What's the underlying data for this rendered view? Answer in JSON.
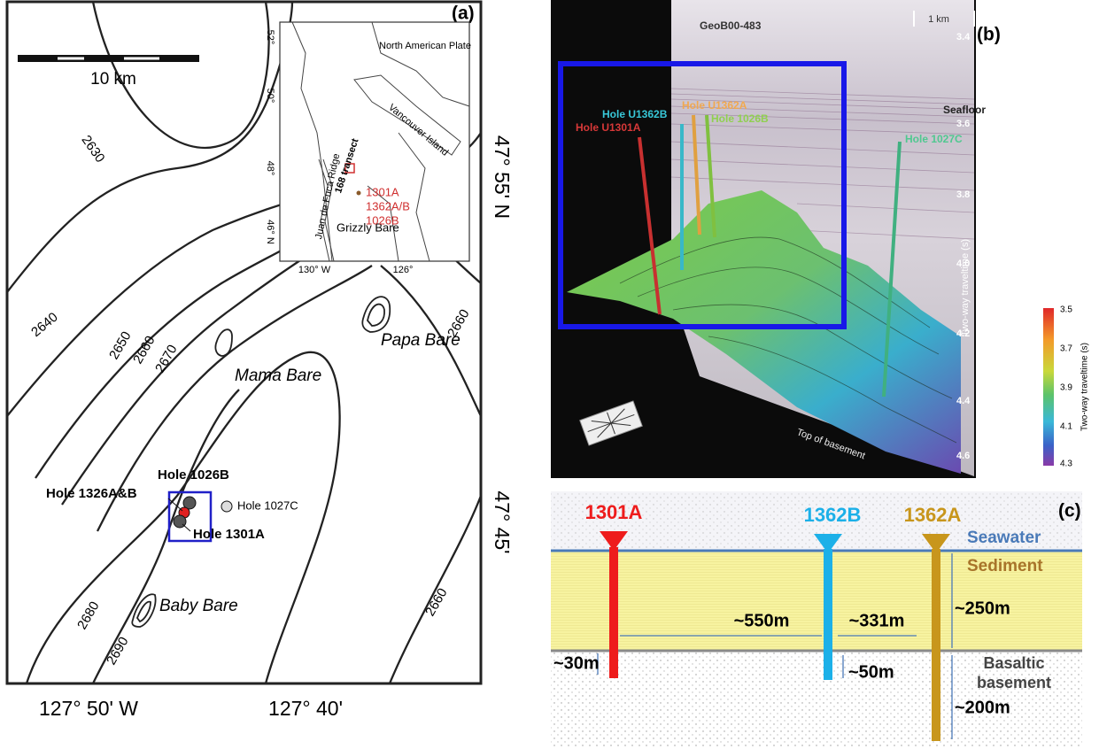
{
  "panel_a": {
    "label": "(a)",
    "scale": "10 km",
    "contours": [
      "2630",
      "2640",
      "2650",
      "2660",
      "2670",
      "2680",
      "2690",
      "2660",
      "2660"
    ],
    "features": [
      "Mama Bare",
      "Papa Bare",
      "Baby Bare"
    ],
    "holes": [
      "Hole 1026B",
      "Hole 1326A&B",
      "Hole 1027C",
      "Hole 1301A"
    ],
    "lat_labels": [
      "47° 55' N",
      "47° 45'"
    ],
    "lon_labels": [
      "127° 50' W",
      "127° 40'"
    ],
    "inset": {
      "places": [
        "North American Plate",
        "Vancouver Island",
        "Juan de Fuca Ridge",
        "168 transect",
        "Grizzly Bare"
      ],
      "sites": [
        "1301A",
        "1362A/B",
        "1026B"
      ],
      "lat_ticks": [
        "52°",
        "50°",
        "48°",
        "46° N"
      ],
      "lon_ticks": [
        "130° W",
        "126°"
      ]
    }
  },
  "panel_b": {
    "label": "(b)",
    "profile": "GeoB00-483",
    "scale": "1 km",
    "seafloor": "Seafloor",
    "holes": [
      "Hole U1362B",
      "Hole U1362A",
      "Hole U1301A",
      "Hole 1026B",
      "Hole 1027C"
    ],
    "surface": "Top of basement",
    "axis_title": "Two-way traveltime (s)",
    "axis_ticks": [
      "3.4",
      "3.6",
      "3.8",
      "4.0",
      "4.2",
      "4.4",
      "4.6"
    ],
    "colorbar_title": "Two-way traveltime (s)",
    "colorbar_ticks": [
      "3.5",
      "3.7",
      "3.9",
      "4.1",
      "4.3"
    ]
  },
  "panel_c": {
    "label": "(c)",
    "wells": [
      "1301A",
      "1362B",
      "1362A"
    ],
    "layers": [
      "Seawater",
      "Sediment",
      "Basaltic basement"
    ],
    "distances": [
      "~550m",
      "~331m",
      "~250m",
      "~30m",
      "~50m",
      "~200m"
    ]
  }
}
